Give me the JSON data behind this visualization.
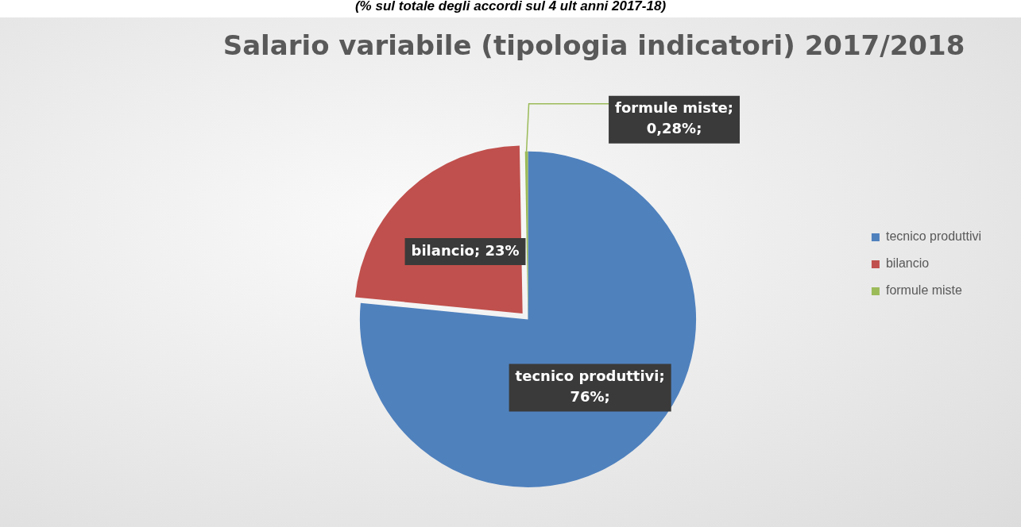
{
  "chart_data": {
    "type": "pie",
    "title": "Salario variabile (tipologia indicatori) 2017/2018",
    "subtitle": "(% sul totale degli accordi sul 4 ult anni 2017-18)",
    "categories": [
      "tecnico produttivi",
      "bilancio",
      "formule miste"
    ],
    "values": [
      76,
      23,
      0.28
    ],
    "colors": [
      "#4f81bd",
      "#c0504d",
      "#9bbb59"
    ],
    "value_labels": [
      "tecnico produttivi;\n76%;",
      "bilancio; 23%",
      "formule miste;\n0,28%;"
    ],
    "legend": "right"
  }
}
